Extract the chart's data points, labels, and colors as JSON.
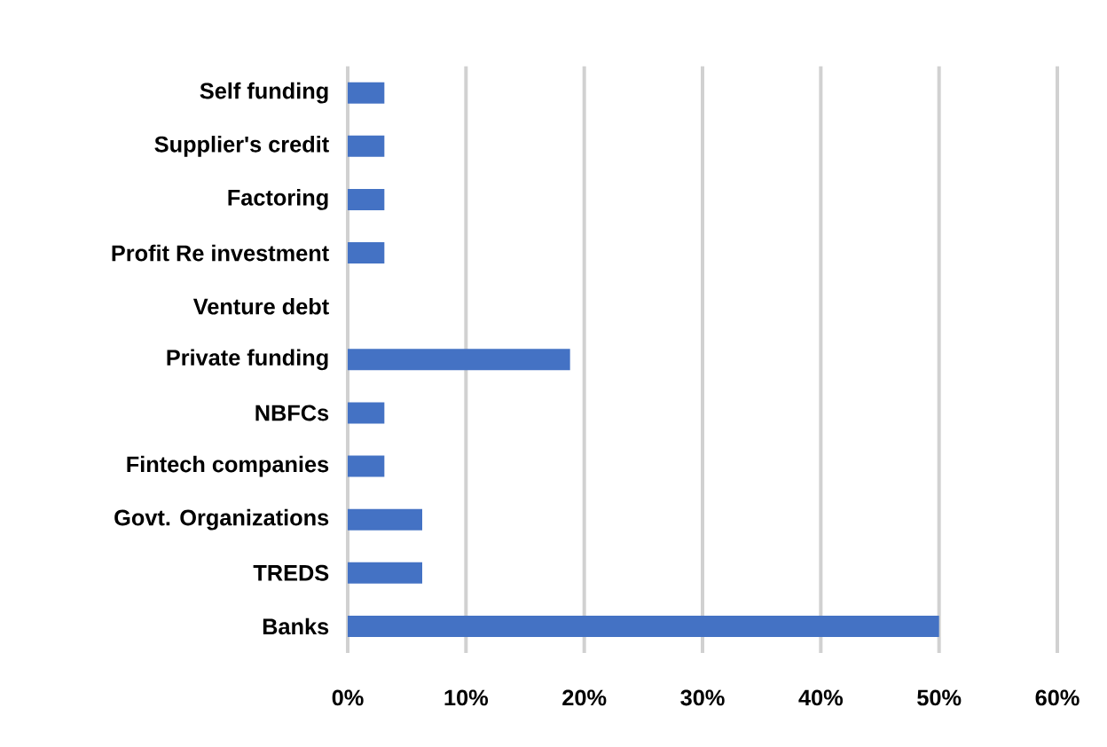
{
  "chart_data": {
    "type": "bar",
    "orientation": "horizontal",
    "categories": [
      "Self funding",
      "Supplier's credit",
      "Factoring",
      "Profit Re investment",
      "Venture debt",
      "Private funding",
      "NBFCs",
      "Fintech companies",
      "Govt. Organizations",
      "TREDS",
      "Banks"
    ],
    "values": [
      3.1,
      3.1,
      3.1,
      3.1,
      0,
      18.8,
      3.1,
      3.1,
      6.3,
      6.3,
      50
    ],
    "color": "#4472c4",
    "xlim": [
      0,
      60
    ],
    "xticks": [
      {
        "value": 0,
        "label": "0%"
      },
      {
        "value": 10,
        "label": "10%"
      },
      {
        "value": 20,
        "label": "20%"
      },
      {
        "value": 30,
        "label": "30%"
      },
      {
        "value": 40,
        "label": "40%"
      },
      {
        "value": 50,
        "label": "50%"
      },
      {
        "value": 60,
        "label": "60%"
      }
    ],
    "grid": "x"
  }
}
